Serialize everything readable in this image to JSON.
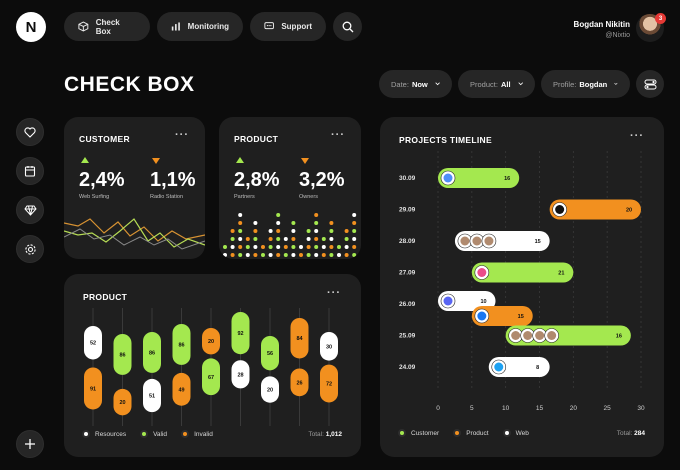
{
  "brand": {
    "logo_text": "N"
  },
  "nav": [
    {
      "label": "Check Box",
      "icon": "box-icon"
    },
    {
      "label": "Monitoring",
      "icon": "bar-chart-icon"
    },
    {
      "label": "Support",
      "icon": "chat-icon"
    }
  ],
  "user": {
    "name": "Bogdan Nikitin",
    "handle": "@Nixtio",
    "notifications": "3"
  },
  "page": {
    "title": "CHECK BOX"
  },
  "filters": [
    {
      "label": "Date:",
      "value": "Now"
    },
    {
      "label": "Product:",
      "value": "All"
    },
    {
      "label": "Profile:",
      "value": "Bogdan"
    }
  ],
  "sidebar": [
    "heart-icon",
    "calendar-icon",
    "diamond-icon",
    "settings-icon"
  ],
  "customer_card": {
    "title": "CUSTOMER",
    "stats": [
      {
        "value": "2,4%",
        "label": "Web Surfing",
        "trend": "up"
      },
      {
        "value": "1,1%",
        "label": "Radio Station",
        "trend": "down"
      }
    ]
  },
  "product_card": {
    "title": "PRODUCT",
    "stats": [
      {
        "value": "2,8%",
        "label": "Partners",
        "trend": "up"
      },
      {
        "value": "3,2%",
        "label": "Owners",
        "trend": "down"
      }
    ]
  },
  "colors": {
    "green": "#a4e84f",
    "orange": "#f2901f",
    "white": "#ffffff",
    "card": "#1f1f1f"
  },
  "product_chart": {
    "title": "PRODUCT",
    "legend": [
      {
        "label": "Resources",
        "color": "#ffffff"
      },
      {
        "label": "Valid",
        "color": "#a4e84f"
      },
      {
        "label": "Invalid",
        "color": "#f2901f"
      }
    ],
    "total_label": "Total:",
    "total_value": "1,012"
  },
  "timeline": {
    "title": "PROJECTS TIMELINE",
    "legend": [
      {
        "label": "Customer",
        "color": "#a4e84f"
      },
      {
        "label": "Product",
        "color": "#f2901f"
      },
      {
        "label": "Web",
        "color": "#ffffff"
      }
    ],
    "total_label": "Total:",
    "total_value": "284"
  },
  "chart_data": [
    {
      "type": "bar",
      "chart": "product",
      "columns": [
        {
          "pills": [
            {
              "value": "52",
              "color": "white"
            },
            {
              "value": "91",
              "color": "orange"
            }
          ]
        },
        {
          "pills": [
            {
              "value": "86",
              "color": "green"
            },
            {
              "value": "20",
              "color": "orange"
            }
          ]
        },
        {
          "pills": [
            {
              "value": "86",
              "color": "green"
            },
            {
              "value": "51",
              "color": "white"
            }
          ]
        },
        {
          "pills": [
            {
              "value": "86",
              "color": "green"
            },
            {
              "value": "49",
              "color": "orange"
            }
          ]
        },
        {
          "pills": [
            {
              "value": "20",
              "color": "orange"
            },
            {
              "value": "67",
              "color": "green"
            }
          ]
        },
        {
          "pills": [
            {
              "value": "92",
              "color": "green"
            },
            {
              "value": "28",
              "color": "white"
            }
          ]
        },
        {
          "pills": [
            {
              "value": "56",
              "color": "green"
            },
            {
              "value": "20",
              "color": "white"
            }
          ]
        },
        {
          "pills": [
            {
              "value": "84",
              "color": "orange"
            },
            {
              "value": "26",
              "color": "orange"
            }
          ]
        },
        {
          "pills": [
            {
              "value": "30",
              "color": "white"
            },
            {
              "value": "72",
              "color": "orange"
            }
          ]
        }
      ]
    },
    {
      "type": "bar",
      "chart": "projects-timeline",
      "categories": [
        "30.09",
        "29.09",
        "28.09",
        "27.09",
        "26.09",
        "25.09",
        "24.09"
      ],
      "x_ticks": [
        "0",
        "5",
        "10",
        "15",
        "20",
        "25",
        "30"
      ],
      "xlim": [
        0,
        30
      ],
      "bars": [
        {
          "date": "30.09",
          "start": 0,
          "end": 12,
          "value": "16",
          "color": "green",
          "icons": [
            "chrome-icon"
          ]
        },
        {
          "date": "29.09",
          "start": 16.5,
          "end": 30,
          "value": "20",
          "color": "orange",
          "icons": [
            "x-icon"
          ]
        },
        {
          "date": "28.09",
          "start": 2.5,
          "end": 16.5,
          "value": "15",
          "color": "white",
          "icons": [
            "avatar-icon",
            "avatar-icon",
            "avatar-icon"
          ]
        },
        {
          "date": "27.09",
          "start": 5,
          "end": 20,
          "value": "21",
          "color": "green",
          "icons": [
            "dribbble-icon"
          ]
        },
        {
          "date": "26.09",
          "start": 0,
          "end": 8.5,
          "value": "10",
          "color": "white",
          "icons": [
            "discord-icon"
          ]
        },
        {
          "date": "26.09",
          "start": 5,
          "end": 14,
          "value": "15",
          "color": "orange",
          "icons": [
            "facebook-icon"
          ]
        },
        {
          "date": "25.09",
          "start": 10,
          "end": 28.5,
          "value": "16",
          "color": "green",
          "icons": [
            "avatar-icon",
            "avatar-icon",
            "avatar-icon",
            "avatar-icon"
          ]
        },
        {
          "date": "24.09",
          "start": 7.5,
          "end": 16.5,
          "value": "8",
          "color": "white",
          "icons": [
            "twitter-icon"
          ]
        }
      ]
    }
  ]
}
